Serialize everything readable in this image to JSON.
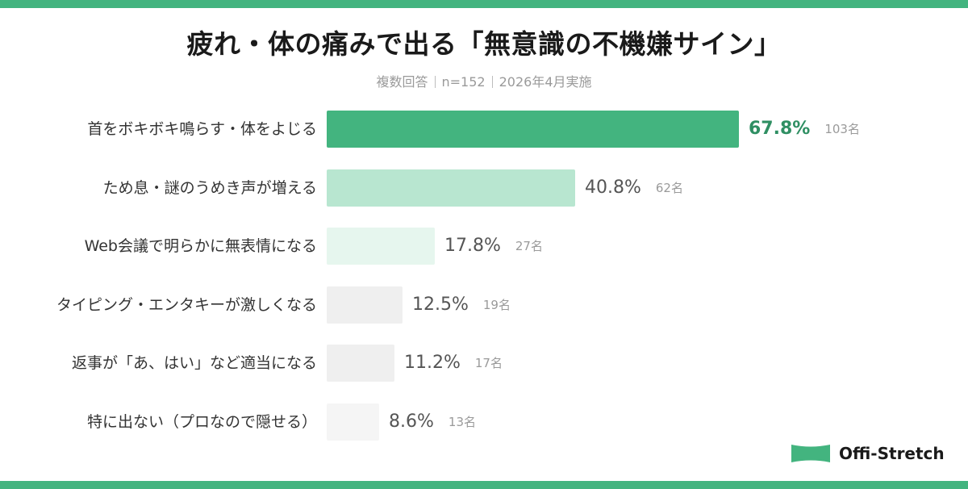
{
  "header": {
    "title": "疲れ・体の痛みで出る「無意識の不機嫌サイン」",
    "subtitle_parts": [
      "複数回答",
      "n=152",
      "2026年4月実施"
    ]
  },
  "brand": {
    "name": "Offi-Stretch",
    "logo_icon": "stretch-band-icon",
    "accent_color": "#43b47f"
  },
  "chart_data": {
    "type": "bar",
    "orientation": "horizontal",
    "title": "疲れ・体の痛みで出る「無意識の不機嫌サイン」",
    "subtitle": "複数回答｜n=152｜2026年4月実施",
    "xlabel": "",
    "ylabel": "",
    "unit": "%",
    "grid": false,
    "legend": null,
    "categories": [
      "首をボキボキ鳴らす・体をよじる",
      "ため息・謎のうめき声が増える",
      "Web会議で明らかに無表情になる",
      "タイピング・エンタキーが激しくなる",
      "返事が「あ、はい」など適当になる",
      "特に出ない（プロなので隠せる）"
    ],
    "values": [
      67.8,
      40.8,
      17.8,
      12.5,
      11.2,
      8.6
    ],
    "counts": [
      103,
      62,
      27,
      19,
      17,
      13
    ],
    "value_labels": [
      "67.8%",
      "40.8%",
      "17.8%",
      "12.5%",
      "11.2%",
      "8.6%"
    ],
    "count_labels": [
      "103名",
      "62名",
      "27名",
      "19名",
      "17名",
      "13名"
    ],
    "bar_colors": [
      "#43b47f",
      "#b8e6d0",
      "#e6f6ee",
      "#efefef",
      "#efefef",
      "#f5f5f5"
    ]
  }
}
